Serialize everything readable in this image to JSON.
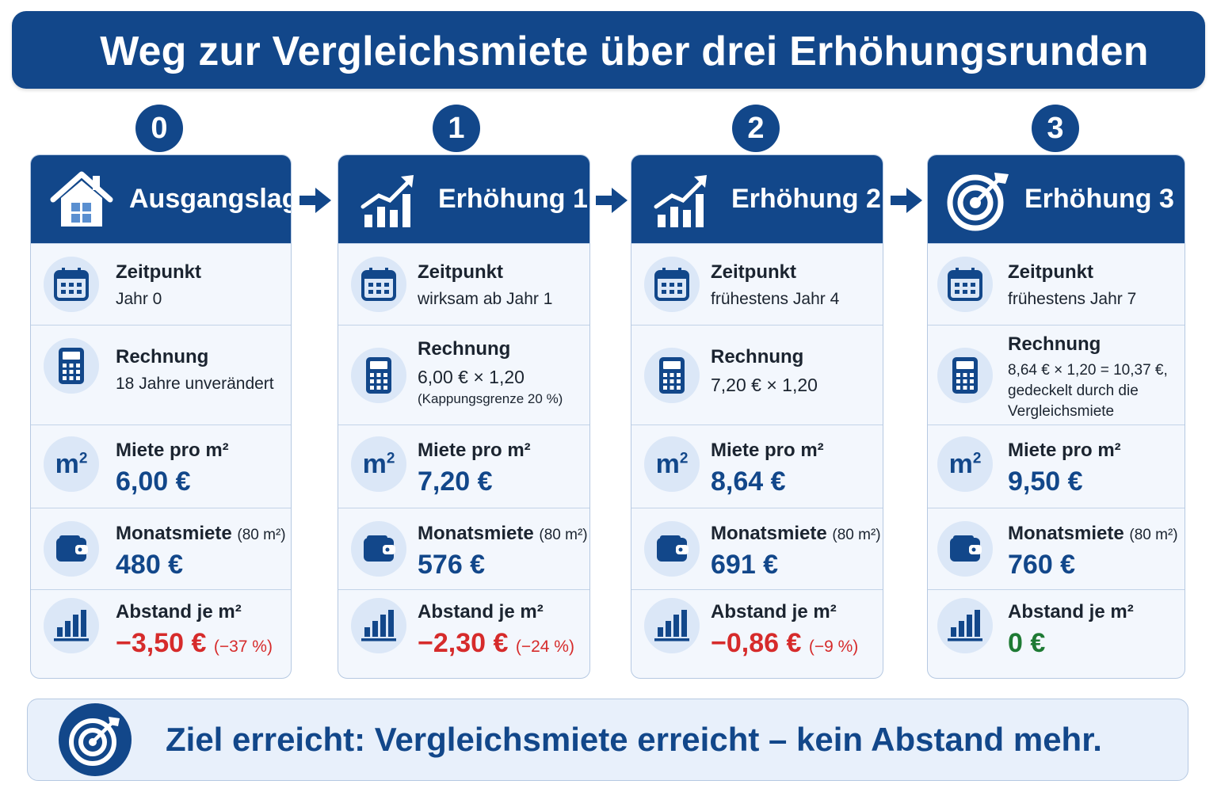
{
  "title": "Weg zur Vergleichsmiete über drei Erhöhungsrunden",
  "colors": {
    "primary": "#12478a",
    "negative": "#d62b2b",
    "positive": "#1e7a34",
    "card_bg": "#f3f7fd"
  },
  "stages": [
    {
      "number": "0",
      "title": "Ausgangslage",
      "icon": "house-icon",
      "zeitpunkt": {
        "label": "Zeitpunkt",
        "value": "Jahr 0"
      },
      "rechnung": {
        "label": "Rechnung",
        "value": "18 Jahre unverändert"
      },
      "miete": {
        "label": "Miete pro m²",
        "value": "6,00 €"
      },
      "monatsmiete": {
        "label": "Monatsmiete",
        "unit": "(80 m²)",
        "value": "480 €"
      },
      "abstand": {
        "label": "Abstand je m²",
        "value": "−3,50 €",
        "percent": "(−37 %)"
      }
    },
    {
      "number": "1",
      "title": "Erhöhung 1",
      "icon": "growth-chart-icon",
      "zeitpunkt": {
        "label": "Zeitpunkt",
        "value": "wirksam ab Jahr 1"
      },
      "rechnung": {
        "label": "Rechnung",
        "value": "6,00 € × 1,20",
        "note": "(Kappungsgrenze 20 %)"
      },
      "miete": {
        "label": "Miete pro m²",
        "value": "7,20 €"
      },
      "monatsmiete": {
        "label": "Monatsmiete",
        "unit": "(80 m²)",
        "value": "576 €"
      },
      "abstand": {
        "label": "Abstand je m²",
        "value": "−2,30 €",
        "percent": "(−24 %)"
      }
    },
    {
      "number": "2",
      "title": "Erhöhung 2",
      "icon": "growth-chart-icon",
      "zeitpunkt": {
        "label": "Zeitpunkt",
        "value": "frühestens Jahr 4"
      },
      "rechnung": {
        "label": "Rechnung",
        "value": "7,20 € × 1,20"
      },
      "miete": {
        "label": "Miete pro m²",
        "value": "8,64 €"
      },
      "monatsmiete": {
        "label": "Monatsmiete",
        "unit": "(80 m²)",
        "value": "691 €"
      },
      "abstand": {
        "label": "Abstand je m²",
        "value": "−0,86 €",
        "percent": "(−9 %)"
      }
    },
    {
      "number": "3",
      "title": "Erhöhung 3",
      "icon": "target-icon",
      "zeitpunkt": {
        "label": "Zeitpunkt",
        "value": "frühestens Jahr 7"
      },
      "rechnung": {
        "label": "Rechnung",
        "lines": [
          "8,64 € × 1,20 = 10,37 €,",
          "gedeckelt durch die",
          "Vergleichsmiete"
        ]
      },
      "miete": {
        "label": "Miete pro m²",
        "value": "9,50 €"
      },
      "monatsmiete": {
        "label": "Monatsmiete",
        "unit": "(80 m²)",
        "value": "760 €"
      },
      "abstand": {
        "label": "Abstand je m²",
        "value": "0 €"
      }
    }
  ],
  "row_icons": [
    "calendar-icon",
    "calculator-icon",
    "m2-icon",
    "wallet-icon",
    "bar-chart-icon"
  ],
  "m2_symbol": "m",
  "m2_sup": "2",
  "footer": {
    "text": "Ziel erreicht: Vergleichsmiete erreicht – kein Abstand mehr.",
    "icon": "target-icon"
  }
}
